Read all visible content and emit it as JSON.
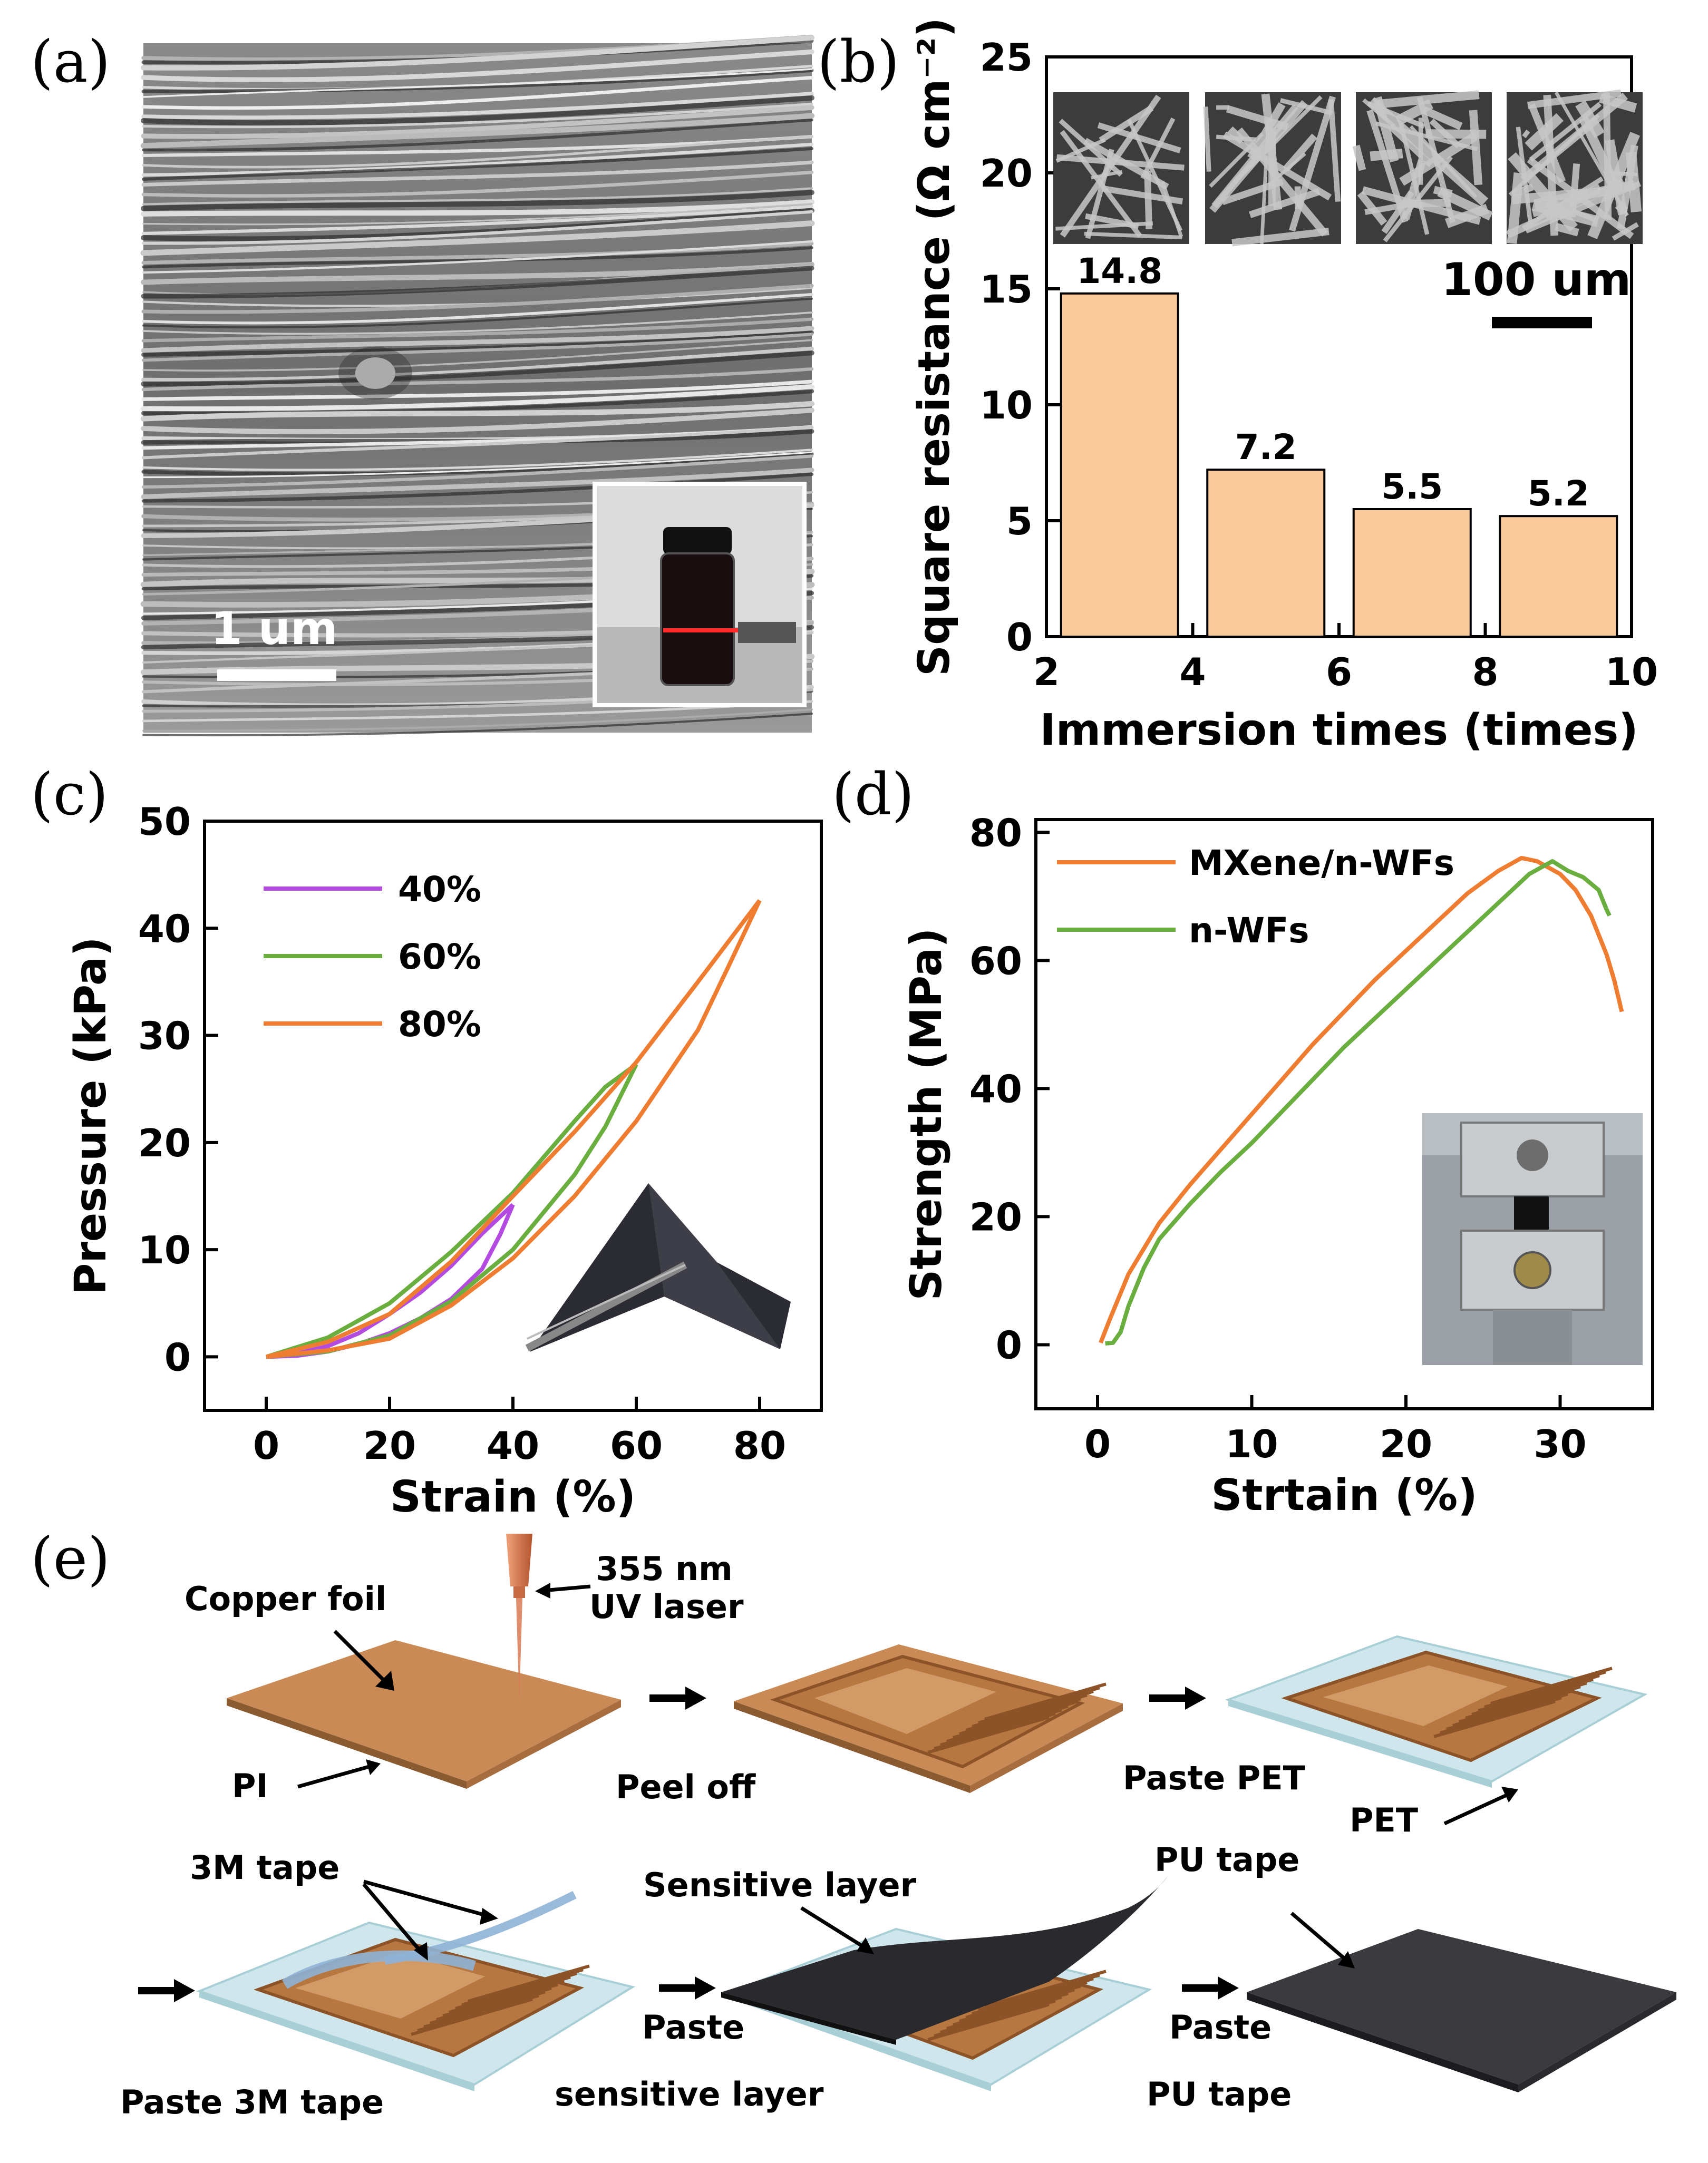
{
  "panel_labels": [
    "(a)",
    "(b)",
    "(c)",
    "(d)",
    "(e)"
  ],
  "panel_a": {
    "scale_bar": "1 um"
  },
  "colors": {
    "bar_fill": "#F9CA9B",
    "purple": "#B44BE1",
    "green": "#6AAE3F",
    "orange": "#EE7D31",
    "copper": "#C98A55"
  },
  "chart_data": [
    {
      "id": "b",
      "type": "bar",
      "xlabel": "Immersion times (times)",
      "ylabel": "Square resistance (Ω cm⁻²)",
      "xlim": [
        2,
        10
      ],
      "ylim": [
        0,
        25
      ],
      "x_ticks": [
        2,
        4,
        6,
        8,
        10
      ],
      "y_ticks": [
        0,
        5,
        10,
        15,
        20,
        25
      ],
      "x": [
        3,
        5,
        7,
        9
      ],
      "bar_width": 1.6,
      "values": [
        14.8,
        7.2,
        5.5,
        5.2
      ],
      "data_labels": [
        "14.8",
        "7.2",
        "5.5",
        "5.2"
      ],
      "inset_scale_bar": "100 um"
    },
    {
      "id": "c",
      "type": "line",
      "xlabel": "Strain (%)",
      "ylabel": "Pressure (kPa)",
      "xlim": [
        -10,
        90
      ],
      "ylim": [
        -5,
        50
      ],
      "x_ticks": [
        0,
        20,
        40,
        60,
        80
      ],
      "y_ticks": [
        0,
        10,
        20,
        30,
        40,
        50
      ],
      "legend": [
        "40%",
        "60%",
        "80%"
      ],
      "series": [
        {
          "name": "40%",
          "color_key": "purple",
          "loading": [
            [
              0,
              0
            ],
            [
              5,
              0.1
            ],
            [
              10,
              0.5
            ],
            [
              15,
              1.2
            ],
            [
              20,
              2.2
            ],
            [
              25,
              3.6
            ],
            [
              30,
              5.4
            ],
            [
              35,
              8.2
            ],
            [
              38,
              11.5
            ],
            [
              40,
              14.2
            ]
          ],
          "unloading": [
            [
              40,
              14.2
            ],
            [
              35,
              11.5
            ],
            [
              30,
              8.5
            ],
            [
              25,
              6.0
            ],
            [
              20,
              4.0
            ],
            [
              15,
              2.2
            ],
            [
              10,
              1.0
            ],
            [
              5,
              0.3
            ],
            [
              0,
              0
            ]
          ]
        },
        {
          "name": "60%",
          "color_key": "green",
          "loading": [
            [
              0,
              0
            ],
            [
              10,
              0.5
            ],
            [
              20,
              2.0
            ],
            [
              30,
              5.2
            ],
            [
              40,
              10.0
            ],
            [
              50,
              17.0
            ],
            [
              55,
              21.5
            ],
            [
              60,
              27.3
            ]
          ],
          "unloading": [
            [
              60,
              27.3
            ],
            [
              55,
              25.2
            ],
            [
              50,
              22.0
            ],
            [
              40,
              15.3
            ],
            [
              30,
              9.8
            ],
            [
              20,
              5.0
            ],
            [
              10,
              1.8
            ],
            [
              0,
              0
            ]
          ]
        },
        {
          "name": "80%",
          "color_key": "orange",
          "loading": [
            [
              0,
              0
            ],
            [
              10,
              0.6
            ],
            [
              20,
              1.7
            ],
            [
              30,
              4.8
            ],
            [
              40,
              9.2
            ],
            [
              50,
              15.0
            ],
            [
              60,
              22.0
            ],
            [
              70,
              30.5
            ],
            [
              75,
              36.5
            ],
            [
              80,
              42.6
            ]
          ],
          "unloading": [
            [
              80,
              42.6
            ],
            [
              70,
              35.0
            ],
            [
              60,
              27.5
            ],
            [
              50,
              21.0
            ],
            [
              40,
              15.0
            ],
            [
              30,
              8.9
            ],
            [
              20,
              4.0
            ],
            [
              10,
              1.4
            ],
            [
              0,
              0
            ]
          ]
        }
      ]
    },
    {
      "id": "d",
      "type": "line",
      "xlabel": "Strtain (%)",
      "ylabel": "Strength (MPa)",
      "xlim": [
        -4,
        36
      ],
      "ylim": [
        -10,
        82
      ],
      "x_ticks": [
        0,
        10,
        20,
        30
      ],
      "y_ticks": [
        0,
        20,
        40,
        60,
        80
      ],
      "legend": [
        "MXene/n-WFs",
        "n-WFs"
      ],
      "series": [
        {
          "name": "MXene/n-WFs",
          "color_key": "orange",
          "points": [
            [
              0.2,
              0.3
            ],
            [
              0.8,
              4
            ],
            [
              2,
              11
            ],
            [
              4,
              19
            ],
            [
              6,
              25
            ],
            [
              8,
              30.5
            ],
            [
              10,
              36
            ],
            [
              12,
              41.5
            ],
            [
              14,
              47
            ],
            [
              16,
              52
            ],
            [
              18,
              57
            ],
            [
              20,
              61.5
            ],
            [
              22,
              66
            ],
            [
              24,
              70.5
            ],
            [
              26,
              74
            ],
            [
              27.5,
              76
            ],
            [
              28.5,
              75.5
            ],
            [
              30,
              73.5
            ],
            [
              31,
              71
            ],
            [
              32,
              67
            ],
            [
              33,
              61
            ],
            [
              33.5,
              57
            ],
            [
              34,
              52
            ]
          ]
        },
        {
          "name": "n-WFs",
          "color_key": "green",
          "points": [
            [
              0.5,
              0.2
            ],
            [
              1,
              0.3
            ],
            [
              1.5,
              2
            ],
            [
              2,
              6
            ],
            [
              3,
              12
            ],
            [
              4,
              16.5
            ],
            [
              6,
              22
            ],
            [
              8,
              27
            ],
            [
              10,
              31.5
            ],
            [
              12,
              36.5
            ],
            [
              14,
              41.5
            ],
            [
              16,
              46.5
            ],
            [
              18,
              51
            ],
            [
              20,
              55.5
            ],
            [
              22,
              60
            ],
            [
              24,
              64.5
            ],
            [
              26,
              69
            ],
            [
              28,
              73.5
            ],
            [
              29.5,
              75.5
            ],
            [
              30.5,
              74
            ],
            [
              31.5,
              73
            ],
            [
              32.5,
              71
            ],
            [
              33,
              68
            ],
            [
              33.2,
              67
            ]
          ]
        }
      ]
    }
  ],
  "panel_e": {
    "labels": {
      "copper_foil": "Copper foil",
      "laser": "355 nm",
      "laser2": "UV laser",
      "pi": "PI",
      "peel_off": "Peel off",
      "paste_pet": "Paste PET",
      "pet": "PET",
      "tape_3m": "3M tape",
      "sensitive_layer": "Sensitive layer",
      "pu_tape": "PU tape",
      "paste_3m": "Paste 3M tape",
      "paste": "Paste",
      "sensitive_step": "sensitive layer",
      "paste2": "Paste",
      "pu_step": "PU tape"
    }
  }
}
